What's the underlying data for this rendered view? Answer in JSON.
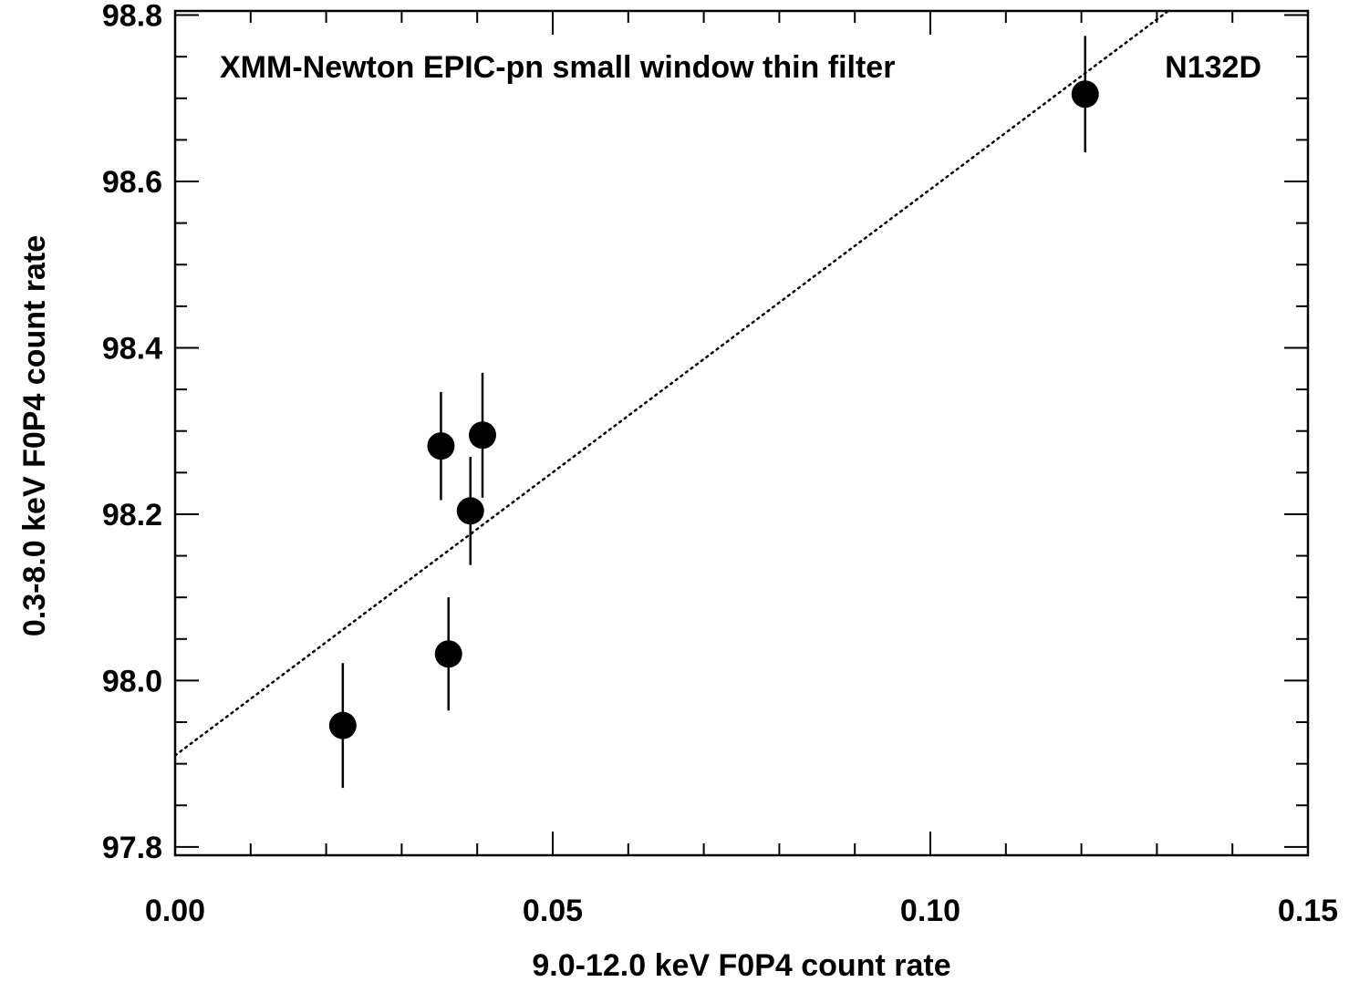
{
  "chart_data": {
    "type": "scatter",
    "title": "",
    "xlabel": "9.0-12.0 keV F0P4 count rate",
    "ylabel": "0.3-8.0 keV F0P4 count rate",
    "xlim": [
      0.0,
      0.15
    ],
    "ylim": [
      97.79,
      98.805
    ],
    "x_ticks": [
      0.0,
      0.05,
      0.1,
      0.15
    ],
    "x_tick_labels": [
      "0.00",
      "0.05",
      "0.10",
      "0.15"
    ],
    "x_minor_step": 0.01,
    "y_ticks": [
      97.8,
      98.0,
      98.2,
      98.4,
      98.6,
      98.8
    ],
    "y_tick_labels": [
      "97.8",
      "98.0",
      "98.2",
      "98.4",
      "98.6",
      "98.8"
    ],
    "y_minor_step": 0.05,
    "grid": false,
    "annotations": [
      {
        "text": "XMM-Newton EPIC-pn small window thin filter"
      },
      {
        "text": "N132D"
      }
    ],
    "series": [
      {
        "points": [
          {
            "x": 0.0222,
            "y": 97.946,
            "yerr": 0.075
          },
          {
            "x": 0.0352,
            "y": 98.282,
            "yerr": 0.065
          },
          {
            "x": 0.0362,
            "y": 98.032,
            "yerr": 0.068
          },
          {
            "x": 0.0391,
            "y": 98.204,
            "yerr": 0.065
          },
          {
            "x": 0.0407,
            "y": 98.295,
            "yerr": 0.075
          },
          {
            "x": 0.1205,
            "y": 98.705,
            "yerr": 0.07
          }
        ]
      }
    ],
    "fit_line": {
      "style": "dotted",
      "x": [
        0.0,
        0.1315
      ],
      "y": [
        97.91,
        98.805
      ]
    }
  }
}
